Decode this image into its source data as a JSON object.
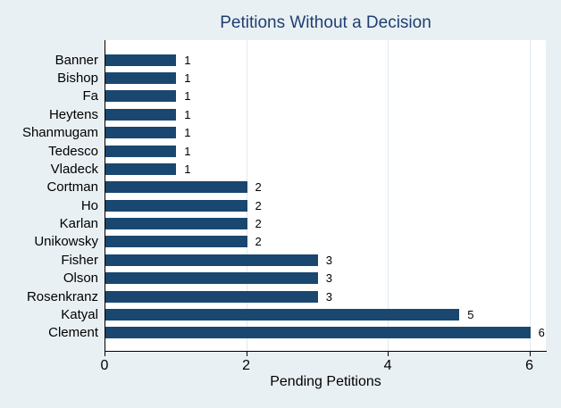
{
  "chart_data": {
    "type": "bar",
    "orientation": "horizontal",
    "title": "Petitions Without a Decision",
    "xlabel": "Pending Petitions",
    "ylabel": "",
    "categories": [
      "Banner",
      "Bishop",
      "Fa",
      "Heytens",
      "Shanmugam",
      "Tedesco",
      "Vladeck",
      "Cortman",
      "Ho",
      "Karlan",
      "Unikowsky",
      "Fisher",
      "Olson",
      "Rosenkranz",
      "Katyal",
      "Clement"
    ],
    "values": [
      1,
      1,
      1,
      1,
      1,
      1,
      1,
      2,
      2,
      2,
      2,
      3,
      3,
      3,
      5,
      6
    ],
    "bar_labels": true,
    "xlim": [
      0,
      6.22
    ],
    "xticks": [
      0,
      2,
      4,
      6
    ],
    "grid": "vertical-light",
    "legend": "none",
    "colors": {
      "bar": "#1a476f",
      "background": "#e9f0f3",
      "plot_background": "#ffffff",
      "title_text": "#1f3e73",
      "gridline": "#e0eaf1",
      "axis_line": "#000000",
      "label_text": "#000000"
    }
  }
}
